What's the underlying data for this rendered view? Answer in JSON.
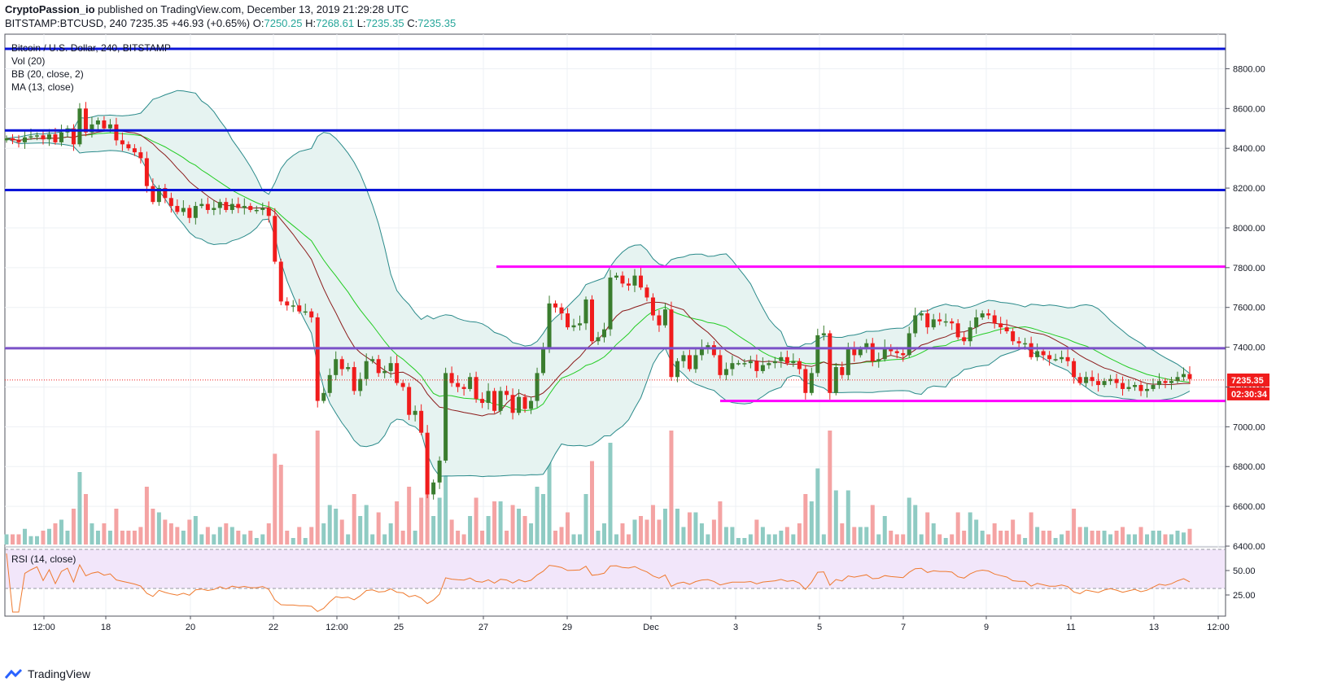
{
  "header": {
    "publisher": "CryptoPassion_io",
    "published_text": "published on TradingView.com, December 13, 2019 21:29:28 UTC",
    "symbol": "BITSTAMP:BTCUSD, 240",
    "last": "7235.35",
    "change": "+46.93 (+0.65%)",
    "o_label": "O:",
    "o_val": "7250.25",
    "h_label": "H:",
    "h_val": "7268.61",
    "l_label": "L:",
    "l_val": "7235.35",
    "c_label": "C:",
    "c_val": "7235.35"
  },
  "legend": {
    "title": "Bitcoin / U.S. Dollar, 240, BITSTAMP",
    "vol": "Vol (20)",
    "bb": "BB (20, close, 2)",
    "ma": "MA (13, close)",
    "rsi": "RSI (14, close)"
  },
  "footer": {
    "brand": "TradingView"
  },
  "colors": {
    "up": "#3a7d2e",
    "down": "#f01c1c",
    "vol_up": "#8fcbc3",
    "vol_down": "#f4a3a3",
    "bb": "#2a8a8a",
    "bb_fill": "#e6f3f1",
    "ma": "#8b1a1a",
    "mid": "#22cc22",
    "blue_line": "#0a14d8",
    "purple_line": "#7b52c8",
    "magenta_line": "#ff00ff",
    "rsi": "#ef7a2f",
    "rsi_band": "#f2e6fa"
  },
  "chart_data": {
    "type": "candlestick",
    "title": "Bitcoin / U.S. Dollar, 240, BITSTAMP",
    "price_axis": {
      "range": [
        6400,
        8900
      ],
      "ticks": [
        6400,
        6600,
        6800,
        7000,
        7200,
        7400,
        7600,
        7800,
        8000,
        8200,
        8400,
        8600,
        8800
      ],
      "tick_labels": [
        "6400.00",
        "6600.00",
        "6800.00",
        "7000.00",
        "7200.00",
        "7400.00",
        "7600.00",
        "7800.00",
        "8000.00",
        "8200.00",
        "8400.00",
        "8600.00",
        "8800.00"
      ]
    },
    "time_axis": {
      "labels": [
        "12:00",
        "18",
        "20",
        "22",
        "12:00",
        "25",
        "27",
        "29",
        "Dec",
        "3",
        "5",
        "7",
        "9",
        "11",
        "13",
        "12:00"
      ]
    },
    "last_price_label": "7235.35",
    "countdown_label": "02:30:34",
    "horizontal_lines": [
      {
        "price": 8900,
        "color": "blue"
      },
      {
        "price": 8490,
        "color": "blue"
      },
      {
        "price": 8190,
        "color": "blue"
      },
      {
        "price": 7395,
        "color": "purple"
      },
      {
        "price": 7805,
        "color": "magenta",
        "start_label": "27"
      },
      {
        "price": 7130,
        "color": "magenta",
        "start_label": "3"
      }
    ],
    "closes": [
      8450,
      8440,
      8430,
      8455,
      8460,
      8465,
      8445,
      8470,
      8430,
      8480,
      8500,
      8420,
      8600,
      8480,
      8520,
      8540,
      8500,
      8520,
      8440,
      8420,
      8400,
      8380,
      8350,
      8210,
      8130,
      8200,
      8150,
      8110,
      8080,
      8100,
      8050,
      8110,
      8120,
      8090,
      8100,
      8130,
      8090,
      8120,
      8100,
      8110,
      8090,
      8090,
      8100,
      8060,
      7830,
      7630,
      7610,
      7610,
      7580,
      7580,
      7550,
      7130,
      7170,
      7260,
      7340,
      7290,
      7300,
      7180,
      7240,
      7330,
      7340,
      7270,
      7280,
      7320,
      7220,
      7200,
      7060,
      7080,
      6970,
      6660,
      6720,
      6830,
      7270,
      7220,
      7200,
      7190,
      7250,
      7140,
      7120,
      7180,
      7080,
      7180,
      7160,
      7070,
      7150,
      7090,
      7130,
      7270,
      7390,
      7620,
      7600,
      7570,
      7500,
      7510,
      7520,
      7640,
      7430,
      7450,
      7490,
      7750,
      7760,
      7720,
      7710,
      7760,
      7700,
      7650,
      7560,
      7510,
      7590,
      7250,
      7330,
      7360,
      7290,
      7360,
      7400,
      7410,
      7360,
      7260,
      7290,
      7320,
      7320,
      7320,
      7330,
      7280,
      7310,
      7320,
      7330,
      7350,
      7320,
      7330,
      7290,
      7170,
      7270,
      7460,
      7470,
      7170,
      7300,
      7260,
      7390,
      7360,
      7390,
      7420,
      7330,
      7340,
      7400,
      7380,
      7370,
      7360,
      7470,
      7560,
      7570,
      7500,
      7540,
      7530,
      7530,
      7520,
      7450,
      7430,
      7500,
      7550,
      7570,
      7560,
      7520,
      7500,
      7480,
      7430,
      7420,
      7420,
      7350,
      7380,
      7360,
      7340,
      7340,
      7350,
      7330,
      7250,
      7220,
      7250,
      7230,
      7210,
      7230,
      7240,
      7220,
      7190,
      7200,
      7210,
      7180,
      7190,
      7210,
      7230,
      7220,
      7230,
      7250,
      7265,
      7240
    ],
    "rsi": {
      "range": [
        0,
        100
      ],
      "bands": [
        30,
        70
      ],
      "tick_labels": [
        "25.00",
        "50.00"
      ]
    },
    "volume_ma_period": 20
  }
}
